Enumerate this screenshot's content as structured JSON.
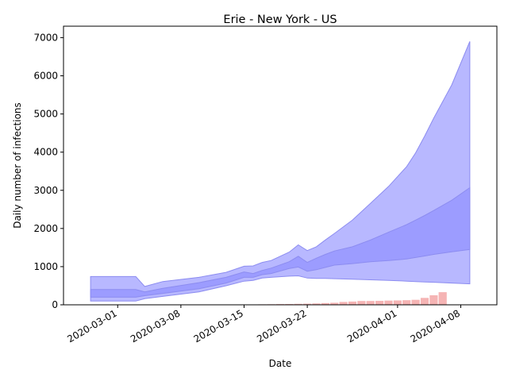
{
  "chart_data": {
    "type": "area",
    "title": "Erie - New York - US",
    "xlabel": "Date",
    "ylabel": "Daily number of infections",
    "ylim": [
      0,
      7300
    ],
    "xlim": [
      "2020-02-24",
      "2020-04-12"
    ],
    "grid": false,
    "legend": "none",
    "x_ticks": [
      "2020-03-01",
      "2020-03-08",
      "2020-03-15",
      "2020-03-22",
      "2020-04-01",
      "2020-04-08"
    ],
    "y_ticks": [
      0,
      1000,
      2000,
      3000,
      4000,
      5000,
      6000,
      7000
    ],
    "colors": {
      "outer_band": "#b8b8ff",
      "inner_band": "#9c9cff",
      "band_edge": "#8c8cf0",
      "bars": "#f5b4b4"
    },
    "band_dates": [
      "2020-02-27",
      "2020-03-03",
      "2020-03-04",
      "2020-03-06",
      "2020-03-10",
      "2020-03-13",
      "2020-03-15",
      "2020-03-16",
      "2020-03-17",
      "2020-03-18",
      "2020-03-20",
      "2020-03-21",
      "2020-03-22",
      "2020-03-23",
      "2020-03-24",
      "2020-03-25",
      "2020-03-27",
      "2020-03-29",
      "2020-03-31",
      "2020-04-02",
      "2020-04-03",
      "2020-04-04",
      "2020-04-05",
      "2020-04-07",
      "2020-04-09"
    ],
    "series": [
      {
        "values_low": [
          100,
          100,
          160,
          220,
          340,
          500,
          620,
          640,
          700,
          720,
          750,
          760,
          700,
          690,
          690,
          685,
          670,
          655,
          640,
          620,
          610,
          600,
          590,
          570,
          550
        ],
        "values_high": [
          740,
          740,
          480,
          610,
          720,
          850,
          1010,
          1020,
          1110,
          1160,
          1380,
          1570,
          1420,
          1520,
          1700,
          1870,
          2220,
          2660,
          3100,
          3620,
          3980,
          4420,
          4890,
          5760,
          6900
        ]
      },
      {
        "values_low": [
          200,
          200,
          240,
          300,
          420,
          570,
          720,
          720,
          790,
          820,
          950,
          990,
          880,
          920,
          980,
          1040,
          1080,
          1130,
          1160,
          1200,
          1240,
          1280,
          1320,
          1390,
          1450
        ],
        "values_high": [
          400,
          400,
          340,
          430,
          580,
          720,
          860,
          820,
          900,
          960,
          1130,
          1270,
          1110,
          1220,
          1320,
          1410,
          1520,
          1700,
          1900,
          2100,
          2220,
          2340,
          2470,
          2740,
          3070
        ]
      }
    ],
    "bar_dates": [
      "2020-03-15",
      "2020-03-16",
      "2020-03-17",
      "2020-03-18",
      "2020-03-19",
      "2020-03-20",
      "2020-03-21",
      "2020-03-22",
      "2020-03-23",
      "2020-03-24",
      "2020-03-25",
      "2020-03-26",
      "2020-03-27",
      "2020-03-28",
      "2020-03-29",
      "2020-03-30",
      "2020-03-31",
      "2020-04-01",
      "2020-04-02",
      "2020-04-03",
      "2020-04-04",
      "2020-04-05",
      "2020-04-06"
    ],
    "bar_values": [
      5,
      8,
      12,
      15,
      18,
      20,
      25,
      30,
      35,
      45,
      55,
      75,
      85,
      100,
      100,
      105,
      110,
      115,
      120,
      130,
      180,
      250,
      330
    ]
  }
}
